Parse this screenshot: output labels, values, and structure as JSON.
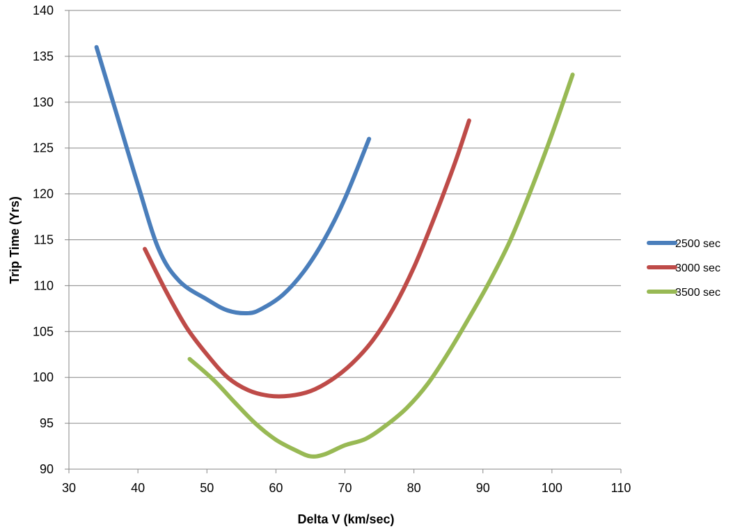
{
  "chart_data": {
    "type": "line",
    "title": "",
    "xlabel": "Delta V (km/sec)",
    "ylabel": "Trip Time (Yrs)",
    "xlim": [
      30,
      110
    ],
    "ylim": [
      90,
      140
    ],
    "x_ticks": [
      30,
      40,
      50,
      60,
      70,
      80,
      90,
      100,
      110
    ],
    "y_ticks": [
      90,
      95,
      100,
      105,
      110,
      115,
      120,
      125,
      130,
      135,
      140
    ],
    "grid": "horizontal",
    "legend_position": "right",
    "series": [
      {
        "name": "2500 sec",
        "color": "#4a7ebb",
        "points": [
          [
            34,
            136
          ],
          [
            37,
            128.5
          ],
          [
            40,
            121
          ],
          [
            43,
            114
          ],
          [
            46,
            110.5
          ],
          [
            50,
            108.5
          ],
          [
            53,
            107.3
          ],
          [
            56,
            107
          ],
          [
            58,
            107.5
          ],
          [
            61,
            109
          ],
          [
            64,
            111.5
          ],
          [
            67,
            115
          ],
          [
            70,
            119.5
          ],
          [
            73.5,
            126
          ]
        ]
      },
      {
        "name": "3000 sec",
        "color": "#be4b48",
        "points": [
          [
            41,
            114
          ],
          [
            44,
            109.5
          ],
          [
            47,
            105.5
          ],
          [
            50,
            102.5
          ],
          [
            53,
            100
          ],
          [
            56,
            98.6
          ],
          [
            59,
            98
          ],
          [
            62,
            98
          ],
          [
            65,
            98.5
          ],
          [
            68,
            99.7
          ],
          [
            71,
            101.5
          ],
          [
            74,
            104
          ],
          [
            77,
            107.5
          ],
          [
            80,
            112
          ],
          [
            83,
            117.5
          ],
          [
            86,
            123.5
          ],
          [
            88,
            128
          ]
        ]
      },
      {
        "name": "3500 sec",
        "color": "#98b954",
        "points": [
          [
            47.5,
            102
          ],
          [
            51,
            99.7
          ],
          [
            54,
            97.3
          ],
          [
            57,
            95
          ],
          [
            60,
            93.2
          ],
          [
            63,
            92
          ],
          [
            65,
            91.4
          ],
          [
            67,
            91.6
          ],
          [
            70,
            92.6
          ],
          [
            73,
            93.3
          ],
          [
            76,
            94.8
          ],
          [
            79,
            96.7
          ],
          [
            82,
            99.3
          ],
          [
            85,
            102.7
          ],
          [
            88,
            106.5
          ],
          [
            91,
            110.5
          ],
          [
            94,
            115
          ],
          [
            97,
            120.5
          ],
          [
            100,
            126.5
          ],
          [
            103,
            133
          ]
        ]
      }
    ]
  }
}
